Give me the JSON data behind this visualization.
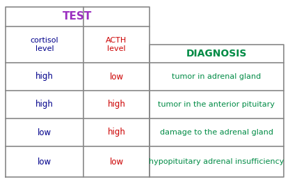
{
  "title": "TEST",
  "title_color": "#9B30C0",
  "diagnosis_header": "DIAGNOSIS",
  "diagnosis_color": "#008B45",
  "col1_header": "cortisol\nlevel",
  "col2_header": "ACTH\nlevel",
  "col1_header_color": "#00008B",
  "col2_header_color": "#CC0000",
  "rows": [
    {
      "col1": "high",
      "col2": "low",
      "diagnosis": "tumor in adrenal gland"
    },
    {
      "col1": "high",
      "col2": "high",
      "diagnosis": "tumor in the anterior pituitary"
    },
    {
      "col1": "low",
      "col2": "high",
      "diagnosis": "damage to the adrenal gland"
    },
    {
      "col1": "low",
      "col2": "low",
      "diagnosis": "hypopituitary adrenal insufficiency"
    }
  ],
  "col1_color": "#00008B",
  "col2_color": "#CC0000",
  "diag_color": "#008B45",
  "background_color": "#FFFFFF",
  "grid_color": "#888888"
}
